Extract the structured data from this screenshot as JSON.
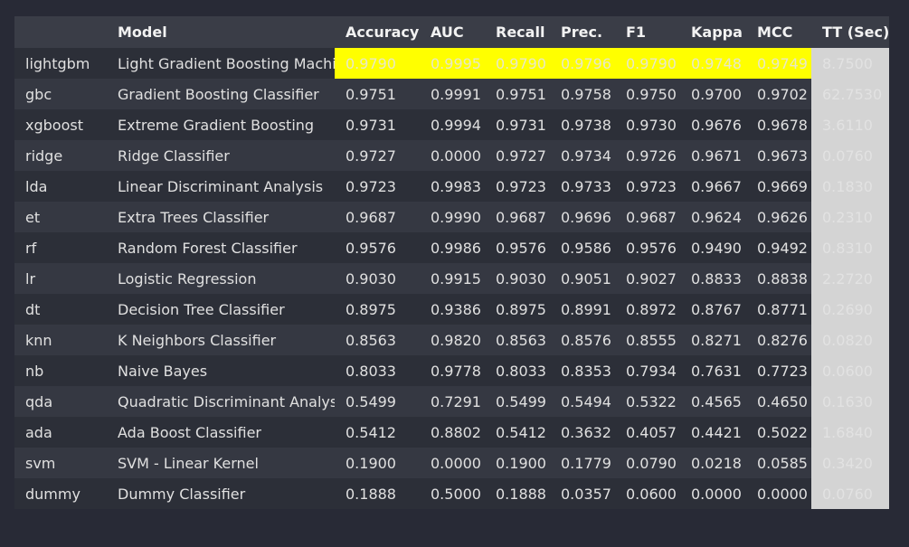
{
  "columns": [
    "",
    "Model",
    "Accuracy",
    "AUC",
    "Recall",
    "Prec.",
    "F1",
    "Kappa",
    "MCC",
    "TT (Sec)"
  ],
  "rows": [
    {
      "id": "lightgbm",
      "model": "Light Gradient Boosting Machine",
      "accuracy": "0.9790",
      "auc": "0.9995",
      "recall": "0.9790",
      "prec": "0.9796",
      "f1": "0.9790",
      "kappa": "0.9748",
      "mcc": "0.9749",
      "tt": "8.7500"
    },
    {
      "id": "gbc",
      "model": "Gradient Boosting Classifier",
      "accuracy": "0.9751",
      "auc": "0.9991",
      "recall": "0.9751",
      "prec": "0.9758",
      "f1": "0.9750",
      "kappa": "0.9700",
      "mcc": "0.9702",
      "tt": "62.7530"
    },
    {
      "id": "xgboost",
      "model": "Extreme Gradient Boosting",
      "accuracy": "0.9731",
      "auc": "0.9994",
      "recall": "0.9731",
      "prec": "0.9738",
      "f1": "0.9730",
      "kappa": "0.9676",
      "mcc": "0.9678",
      "tt": "3.6110"
    },
    {
      "id": "ridge",
      "model": "Ridge Classifier",
      "accuracy": "0.9727",
      "auc": "0.0000",
      "recall": "0.9727",
      "prec": "0.9734",
      "f1": "0.9726",
      "kappa": "0.9671",
      "mcc": "0.9673",
      "tt": "0.0760"
    },
    {
      "id": "lda",
      "model": "Linear Discriminant Analysis",
      "accuracy": "0.9723",
      "auc": "0.9983",
      "recall": "0.9723",
      "prec": "0.9733",
      "f1": "0.9723",
      "kappa": "0.9667",
      "mcc": "0.9669",
      "tt": "0.1830"
    },
    {
      "id": "et",
      "model": "Extra Trees Classifier",
      "accuracy": "0.9687",
      "auc": "0.9990",
      "recall": "0.9687",
      "prec": "0.9696",
      "f1": "0.9687",
      "kappa": "0.9624",
      "mcc": "0.9626",
      "tt": "0.2310"
    },
    {
      "id": "rf",
      "model": "Random Forest Classifier",
      "accuracy": "0.9576",
      "auc": "0.9986",
      "recall": "0.9576",
      "prec": "0.9586",
      "f1": "0.9576",
      "kappa": "0.9490",
      "mcc": "0.9492",
      "tt": "0.8310"
    },
    {
      "id": "lr",
      "model": "Logistic Regression",
      "accuracy": "0.9030",
      "auc": "0.9915",
      "recall": "0.9030",
      "prec": "0.9051",
      "f1": "0.9027",
      "kappa": "0.8833",
      "mcc": "0.8838",
      "tt": "2.2720"
    },
    {
      "id": "dt",
      "model": "Decision Tree Classifier",
      "accuracy": "0.8975",
      "auc": "0.9386",
      "recall": "0.8975",
      "prec": "0.8991",
      "f1": "0.8972",
      "kappa": "0.8767",
      "mcc": "0.8771",
      "tt": "0.2690"
    },
    {
      "id": "knn",
      "model": "K Neighbors Classifier",
      "accuracy": "0.8563",
      "auc": "0.9820",
      "recall": "0.8563",
      "prec": "0.8576",
      "f1": "0.8555",
      "kappa": "0.8271",
      "mcc": "0.8276",
      "tt": "0.0820"
    },
    {
      "id": "nb",
      "model": "Naive Bayes",
      "accuracy": "0.8033",
      "auc": "0.9778",
      "recall": "0.8033",
      "prec": "0.8353",
      "f1": "0.7934",
      "kappa": "0.7631",
      "mcc": "0.7723",
      "tt": "0.0600"
    },
    {
      "id": "qda",
      "model": "Quadratic Discriminant Analysis",
      "accuracy": "0.5499",
      "auc": "0.7291",
      "recall": "0.5499",
      "prec": "0.5494",
      "f1": "0.5322",
      "kappa": "0.4565",
      "mcc": "0.4650",
      "tt": "0.1630"
    },
    {
      "id": "ada",
      "model": "Ada Boost Classifier",
      "accuracy": "0.5412",
      "auc": "0.8802",
      "recall": "0.5412",
      "prec": "0.3632",
      "f1": "0.4057",
      "kappa": "0.4421",
      "mcc": "0.5022",
      "tt": "1.6840"
    },
    {
      "id": "svm",
      "model": "SVM - Linear Kernel",
      "accuracy": "0.1900",
      "auc": "0.0000",
      "recall": "0.1900",
      "prec": "0.1779",
      "f1": "0.0790",
      "kappa": "0.0218",
      "mcc": "0.0585",
      "tt": "0.3420"
    },
    {
      "id": "dummy",
      "model": "Dummy Classifier",
      "accuracy": "0.1888",
      "auc": "0.5000",
      "recall": "0.1888",
      "prec": "0.0357",
      "f1": "0.0600",
      "kappa": "0.0000",
      "mcc": "0.0000",
      "tt": "0.0760"
    }
  ],
  "colors": {
    "background": "#282a36",
    "highlight": "#ffff00",
    "tt_column": "#d4d4d4"
  }
}
